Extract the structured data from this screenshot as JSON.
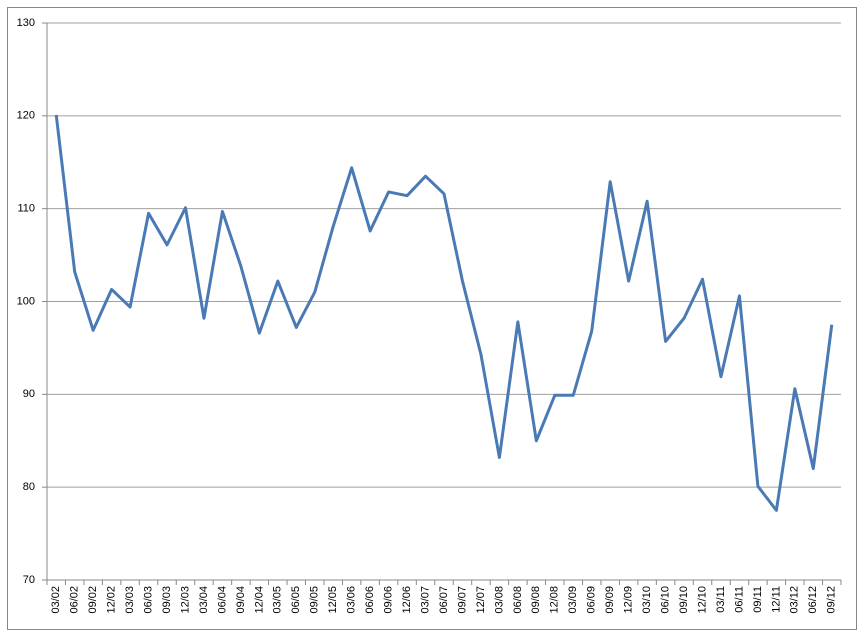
{
  "chart_data": {
    "type": "line",
    "categories": [
      "03/02",
      "06/02",
      "09/02",
      "12/02",
      "03/03",
      "06/03",
      "09/03",
      "12/03",
      "03/04",
      "06/04",
      "09/04",
      "12/04",
      "03/05",
      "06/05",
      "09/05",
      "12/05",
      "03/06",
      "06/06",
      "09/06",
      "12/06",
      "03/07",
      "06/07",
      "09/07",
      "12/07",
      "03/08",
      "06/08",
      "09/08",
      "12/08",
      "03/09",
      "06/09",
      "09/09",
      "12/09",
      "03/10",
      "06/10",
      "09/10",
      "12/10",
      "03/11",
      "06/11",
      "09/11",
      "12/11",
      "03/12",
      "06/12",
      "09/12"
    ],
    "values": [
      120.1,
      103.2,
      96.9,
      101.3,
      99.4,
      109.5,
      106.1,
      110.1,
      98.2,
      109.7,
      103.8,
      96.6,
      102.2,
      97.2,
      101.0,
      108.1,
      114.4,
      107.6,
      111.8,
      111.4,
      113.5,
      111.6,
      102.2,
      94.3,
      83.2,
      97.8,
      85.0,
      89.9,
      89.9,
      96.8,
      112.9,
      102.2,
      110.8,
      95.7,
      98.2,
      102.4,
      91.9,
      100.6,
      80.1,
      77.5,
      90.6,
      82.0,
      97.5
    ],
    "color": "#4a7ab5",
    "ylim": [
      70,
      130
    ],
    "yticks": [
      70,
      80,
      90,
      100,
      110,
      120,
      130
    ],
    "grid": true
  }
}
